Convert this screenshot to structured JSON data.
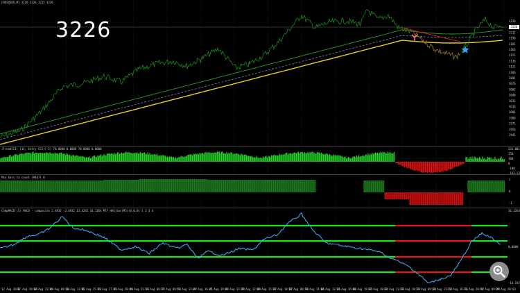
{
  "main_chart": {
    "header": "CROSUSDX,M1  3226 3226 3225 3226",
    "big_price": "3226",
    "current_price": "3226",
    "price_labels": [
      "3236",
      "3226",
      "3211",
      "3196",
      "3181",
      "3166",
      "3151",
      "3136",
      "3121",
      "3106",
      "3091",
      "3076",
      "3061",
      "3046",
      "3031",
      "3016",
      "3001",
      "2986",
      "2971",
      "2956",
      "2941"
    ],
    "colors": {
      "price": "#1f8a1f",
      "price_down": "#9a7a2a",
      "ma_fast": "#2aa02a",
      "ma_mid": "#888888",
      "ma_slow": "#e8d020",
      "signal": "#e02020"
    },
    "markers": {
      "sell_arrow": "pink-arrow",
      "buy_star": "blue-star"
    }
  },
  "cci_pane": {
    "label": "(TrendCCI) (14, Entry-CCI)(-5)  70.0000 0.0000 70.0000 0.0000",
    "scale": [
      "231.0017",
      "150",
      "100",
      "0",
      "-100",
      "-163.2367"
    ]
  },
  "bars_pane": {
    "label": "Max bars to count (9467)  0",
    "scale": [
      "1",
      "0",
      "-1"
    ]
  },
  "macd_pane": {
    "label": "CompMACD (5) MACD - composite  2.4932  -2.4932  13.4241  16.1264  MTF_HAS_Bar(M5)(0,0,0) 1 2 3 4",
    "scale": [
      "16.1264",
      "0.0000",
      "-14.1921"
    ]
  },
  "time_axis": {
    "labels": [
      "12 Aug 2016",
      "12 Aug 20:00",
      "12 Aug 23:44",
      "16 Aug 09:30",
      "16 Aug 12:02",
      "16 Aug 15:11",
      "16 Aug 17:42",
      "16 Aug 20:40",
      "16 Aug 23:10",
      "17 Aug 06:21",
      "17 Aug 09:50",
      "17 Aug 13:42",
      "17 Aug 16:41",
      "17 Aug 19:48",
      "17 Aug 23:29",
      "18 Aug 12:09",
      "18 Aug 15:22",
      "18 Aug 18:07",
      "19 Aug 08:30",
      "19 Aug 11:06",
      "19 Aug 13:26",
      "19 Aug 16:00",
      "19 Aug 19:02",
      "22 Aug 10:02",
      "22 Aug 13:30",
      "22 Aug 18:39",
      "23 Aug 09:30",
      "23 Aug 12:20",
      "23 Aug 16:36",
      "23 Aug 20:12",
      "24 Aug 09:49",
      "24 Aug 20:03"
    ]
  },
  "toolbar": {
    "zoom_icon": "magnifier-plus-icon"
  }
}
